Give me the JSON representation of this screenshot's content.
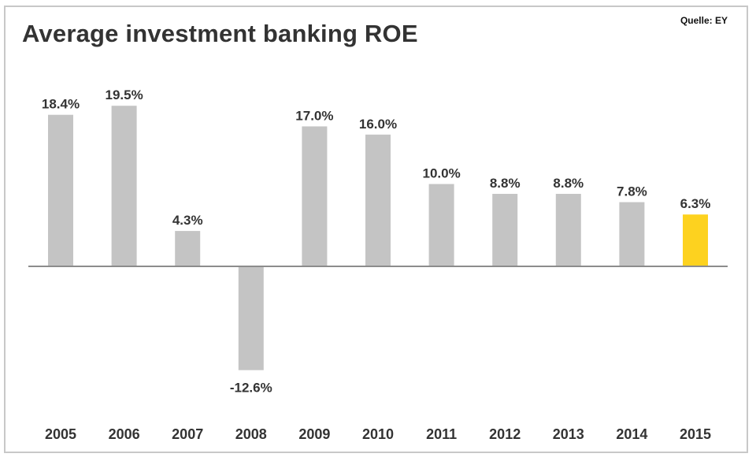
{
  "source": "Quelle: EY",
  "chart_data": {
    "type": "bar",
    "title": "Average investment banking ROE",
    "categories": [
      "2005",
      "2006",
      "2007",
      "2008",
      "2009",
      "2010",
      "2011",
      "2012",
      "2013",
      "2014",
      "2015"
    ],
    "values": [
      18.4,
      19.5,
      4.3,
      -12.6,
      17.0,
      16.0,
      10.0,
      8.8,
      8.8,
      7.8,
      6.3
    ],
    "value_labels": [
      "18.4%",
      "19.5%",
      "4.3%",
      "-12.6%",
      "17.0%",
      "16.0%",
      "10.0%",
      "8.8%",
      "8.8%",
      "7.8%",
      "6.3%"
    ],
    "unit": "%",
    "xlabel": "",
    "ylabel": "",
    "ylim": [
      -15,
      22
    ],
    "grid": false,
    "colors": {
      "default": "#c4c4c4",
      "highlight": "#fdd21f",
      "axis": "#8c8c8c",
      "text": "#333333"
    },
    "highlight_category": "2015"
  }
}
